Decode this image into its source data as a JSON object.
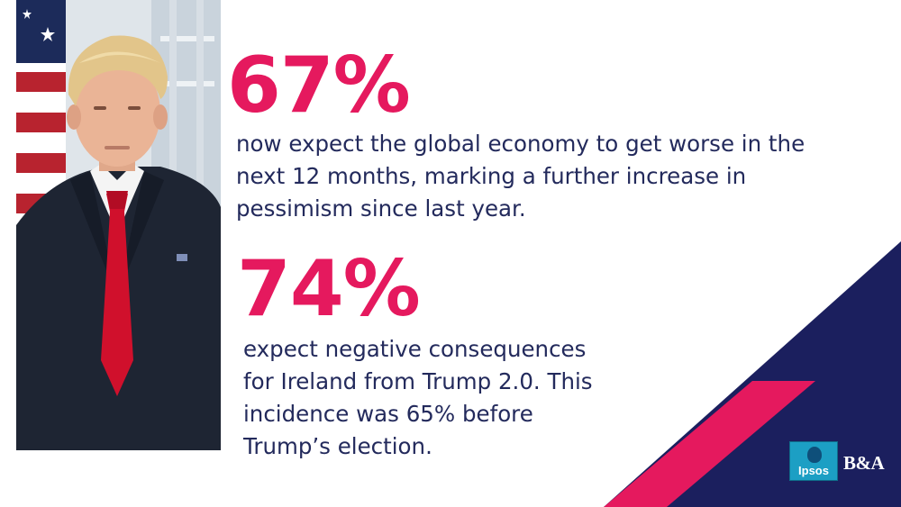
{
  "colors": {
    "accent_pink": "#e5195e",
    "navy": "#1b1f5e",
    "text_navy": "#232a5c"
  },
  "stats": [
    {
      "number": "67%",
      "text": "now expect the global economy to get worse in the next 12 months, marking a further increase in pessimism since last year."
    },
    {
      "number": "74%",
      "text": "expect negative consequences for Ireland from Trump 2.0. This incidence was 65% before Trump’s election."
    }
  ],
  "portrait": {
    "subject": "Donald Trump portrait"
  },
  "logos": {
    "ipsos_label": "Ipsos",
    "ba_label": "B&A"
  }
}
